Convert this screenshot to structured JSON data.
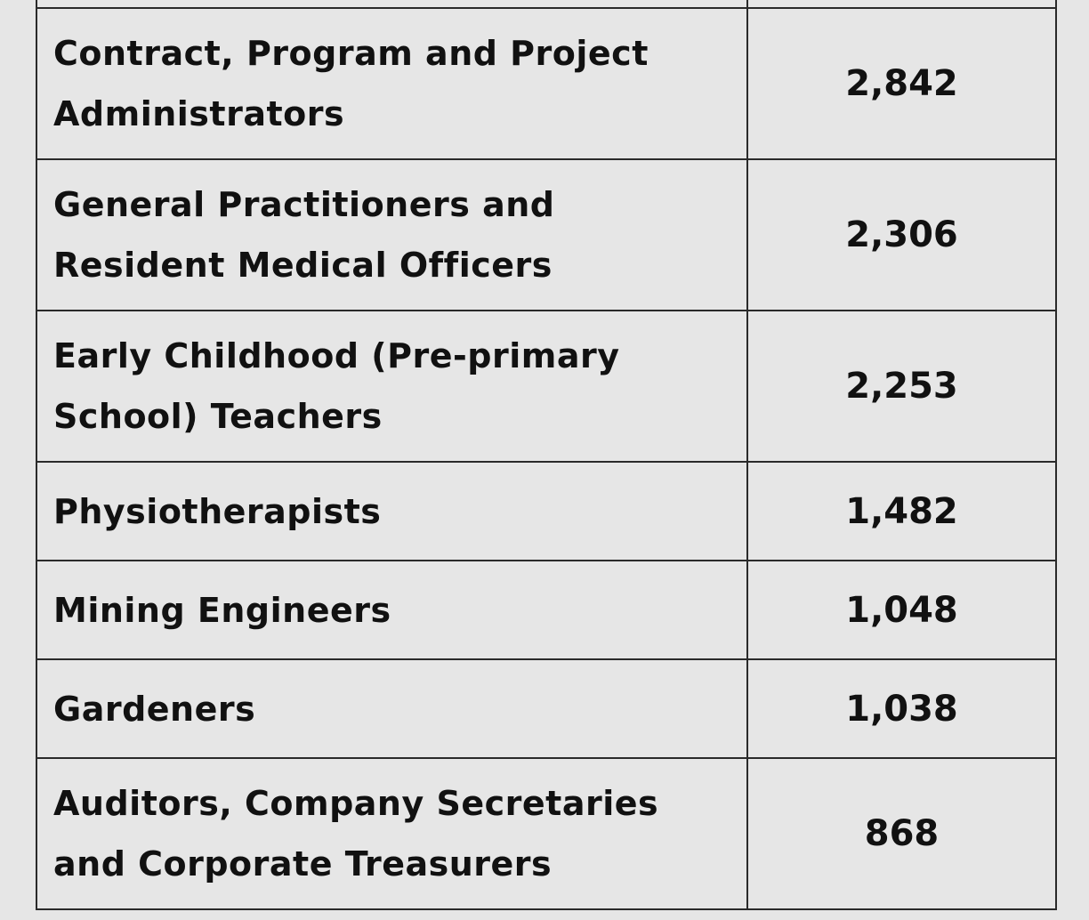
{
  "table": {
    "rows": [
      [
        [
          "Contract, Program and Project",
          "Administrators"
        ],
        "2,842"
      ],
      [
        [
          "General Practitioners and",
          "Resident Medical Officers"
        ],
        "2,306"
      ],
      [
        [
          "Early Childhood (Pre-primary",
          "School) Teachers"
        ],
        "2,253"
      ],
      [
        [
          "Physiotherapists"
        ],
        "1,482"
      ],
      [
        [
          "Mining Engineers"
        ],
        "1,048"
      ],
      [
        [
          "Gardeners"
        ],
        "1,038"
      ],
      [
        [
          "Auditors, Company Secretaries",
          "and Corporate Treasurers"
        ],
        "868"
      ]
    ]
  }
}
